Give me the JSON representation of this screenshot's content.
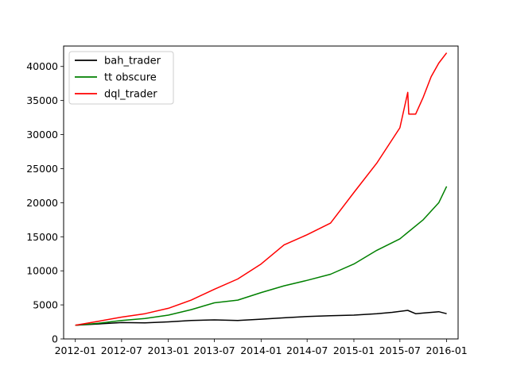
{
  "chart_data": {
    "type": "line",
    "title": "",
    "xlabel": "",
    "ylabel": "",
    "grid": false,
    "legend_position": "top-left",
    "x_ticks": [
      "2012-01",
      "2012-07",
      "2013-01",
      "2013-07",
      "2014-01",
      "2014-07",
      "2015-01",
      "2015-07",
      "2016-01"
    ],
    "y_ticks": [
      0,
      5000,
      10000,
      15000,
      20000,
      25000,
      30000,
      35000,
      40000
    ],
    "ylim": [
      0,
      43000
    ],
    "xlim": [
      "2011-11-16",
      "2016-02-15"
    ],
    "series": [
      {
        "name": "bah_trader",
        "color": "#000000",
        "x": [
          "2012-01-01",
          "2012-04-01",
          "2012-07-01",
          "2012-10-01",
          "2013-01-01",
          "2013-04-01",
          "2013-07-01",
          "2013-10-01",
          "2014-01-01",
          "2014-04-01",
          "2014-07-01",
          "2014-10-01",
          "2015-01-01",
          "2015-04-01",
          "2015-06-01",
          "2015-08-01",
          "2015-09-01",
          "2015-10-01",
          "2015-12-01",
          "2016-01-01"
        ],
        "values": [
          2000,
          2200,
          2400,
          2350,
          2500,
          2700,
          2800,
          2700,
          2900,
          3100,
          3300,
          3400,
          3500,
          3700,
          3900,
          4200,
          3700,
          3800,
          4000,
          3700
        ]
      },
      {
        "name": "tt obscure",
        "color": "#008000",
        "x": [
          "2012-01-01",
          "2012-04-01",
          "2012-07-01",
          "2012-10-01",
          "2013-01-01",
          "2013-04-01",
          "2013-07-01",
          "2013-10-01",
          "2014-01-01",
          "2014-04-01",
          "2014-07-01",
          "2014-10-01",
          "2015-01-01",
          "2015-04-01",
          "2015-07-01",
          "2015-10-01",
          "2015-12-01",
          "2016-01-01"
        ],
        "values": [
          2000,
          2300,
          2700,
          3000,
          3500,
          4300,
          5300,
          5700,
          6800,
          7800,
          8600,
          9500,
          11000,
          13000,
          14700,
          17500,
          20000,
          22400
        ]
      },
      {
        "name": "dql_trader",
        "color": "#ff0000",
        "x": [
          "2012-01-01",
          "2012-04-01",
          "2012-07-01",
          "2012-10-01",
          "2013-01-01",
          "2013-04-01",
          "2013-07-01",
          "2013-10-01",
          "2014-01-01",
          "2014-04-01",
          "2014-07-01",
          "2014-10-01",
          "2015-01-01",
          "2015-04-01",
          "2015-07-01",
          "2015-08-01",
          "2015-08-05",
          "2015-09-01",
          "2015-10-01",
          "2015-11-01",
          "2015-12-01",
          "2016-01-01"
        ],
        "values": [
          2000,
          2600,
          3200,
          3700,
          4500,
          5700,
          7300,
          8800,
          11000,
          13800,
          15300,
          17000,
          21500,
          25800,
          31000,
          36200,
          33000,
          33000,
          35500,
          38500,
          40500,
          42000
        ]
      }
    ]
  }
}
